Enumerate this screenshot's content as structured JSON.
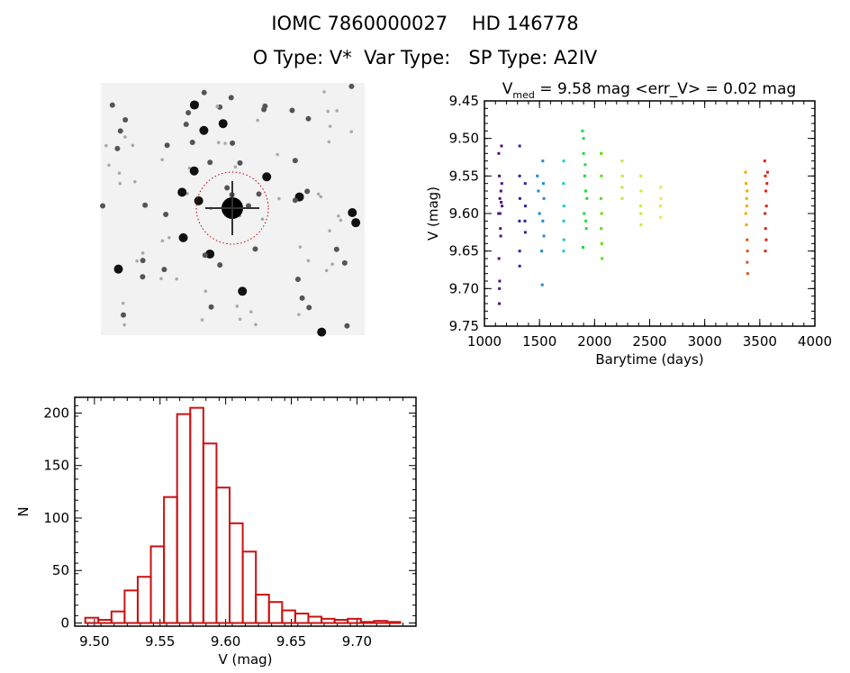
{
  "header": {
    "title_line1": "IOMC 7860000027    HD 146778",
    "title_line2": "O Type: V*  Var Type:   SP Type: A2IV"
  },
  "image_panel": {
    "icon": "star-field-image",
    "circle_color": "#cc0000"
  },
  "chart_data": [
    {
      "type": "scatter",
      "title": "V_med = 9.58 mag <err_V> = 0.02 mag",
      "title_main": "V",
      "title_sub": "med",
      "title_rest": " = 9.58 mag <err_V> = 0.02 mag",
      "xlabel": "Barytime (days)",
      "ylabel": "V (mag)",
      "xlim": [
        1000,
        4000
      ],
      "ylim": [
        9.45,
        9.75
      ],
      "y_reversed": true,
      "xticks": [
        "1000",
        "1500",
        "2000",
        "2500",
        "3000",
        "3500",
        "4000"
      ],
      "yticks": [
        "9.45",
        "9.50",
        "9.55",
        "9.60",
        "9.65",
        "9.70",
        "9.75"
      ],
      "groups": [
        {
          "color": "#55107a",
          "points": [
            [
              1130,
              9.52
            ],
            [
              1135,
              9.55
            ],
            [
              1140,
              9.58
            ],
            [
              1128,
              9.6
            ],
            [
              1145,
              9.62
            ],
            [
              1150,
              9.57
            ],
            [
              1155,
              9.51
            ],
            [
              1160,
              9.59
            ],
            [
              1132,
              9.66
            ],
            [
              1138,
              9.69
            ],
            [
              1135,
              9.72
            ],
            [
              1148,
              9.63
            ],
            [
              1158,
              9.56
            ],
            [
              1142,
              9.6
            ],
            [
              1152,
              9.585
            ],
            [
              1136,
              9.7
            ]
          ]
        },
        {
          "color": "#2828a0",
          "points": [
            [
              1320,
              9.51
            ],
            [
              1320,
              9.55
            ],
            [
              1322,
              9.58
            ],
            [
              1318,
              9.61
            ],
            [
              1320,
              9.65
            ],
            [
              1320,
              9.67
            ],
            [
              1370,
              9.56
            ],
            [
              1372,
              9.59
            ],
            [
              1368,
              9.61
            ],
            [
              1371,
              9.625
            ]
          ]
        },
        {
          "color": "#1e8ad0",
          "points": [
            [
              1480,
              9.55
            ],
            [
              1490,
              9.57
            ],
            [
              1500,
              9.6
            ],
            [
              1520,
              9.65
            ],
            [
              1525,
              9.695
            ],
            [
              1530,
              9.53
            ],
            [
              1535,
              9.56
            ],
            [
              1540,
              9.58
            ],
            [
              1530,
              9.61
            ],
            [
              1540,
              9.63
            ]
          ]
        },
        {
          "color": "#20c8c8",
          "points": [
            [
              1720,
              9.53
            ],
            [
              1718,
              9.56
            ],
            [
              1722,
              9.59
            ],
            [
              1720,
              9.61
            ],
            [
              1721,
              9.635
            ],
            [
              1719,
              9.65
            ]
          ]
        },
        {
          "color": "#20d840",
          "points": [
            [
              1890,
              9.49
            ],
            [
              1900,
              9.52
            ],
            [
              1910,
              9.55
            ],
            [
              1920,
              9.57
            ],
            [
              1905,
              9.6
            ],
            [
              1925,
              9.62
            ],
            [
              1895,
              9.645
            ],
            [
              1915,
              9.535
            ],
            [
              1930,
              9.58
            ],
            [
              1900,
              9.5
            ],
            [
              1920,
              9.61
            ]
          ]
        },
        {
          "color": "#58e000",
          "points": [
            [
              2060,
              9.52
            ],
            [
              2062,
              9.55
            ],
            [
              2058,
              9.58
            ],
            [
              2064,
              9.6
            ],
            [
              2060,
              9.62
            ],
            [
              2066,
              9.64
            ],
            [
              2068,
              9.66
            ]
          ]
        },
        {
          "color": "#c0e840",
          "points": [
            [
              2250,
              9.53
            ],
            [
              2252,
              9.55
            ],
            [
              2250,
              9.565
            ],
            [
              2251,
              9.58
            ]
          ]
        },
        {
          "color": "#d8e820",
          "points": [
            [
              2420,
              9.55
            ],
            [
              2422,
              9.57
            ],
            [
              2418,
              9.59
            ],
            [
              2420,
              9.6
            ],
            [
              2421,
              9.615
            ]
          ]
        },
        {
          "color": "#e8e840",
          "points": [
            [
              2600,
              9.565
            ],
            [
              2602,
              9.58
            ],
            [
              2598,
              9.59
            ],
            [
              2600,
              9.605
            ]
          ]
        },
        {
          "color": "#f0a800",
          "points": [
            [
              3370,
              9.545
            ],
            [
              3375,
              9.56
            ],
            [
              3380,
              9.58
            ],
            [
              3372,
              9.6
            ],
            [
              3378,
              9.615
            ],
            [
              3385,
              9.57
            ],
            [
              3382,
              9.59
            ]
          ]
        },
        {
          "color": "#d05a20",
          "points": [
            [
              3385,
              9.635
            ],
            [
              3388,
              9.65
            ],
            [
              3386,
              9.665
            ],
            [
              3390,
              9.68
            ]
          ]
        },
        {
          "color": "#e02010",
          "points": [
            [
              3545,
              9.53
            ],
            [
              3550,
              9.55
            ],
            [
              3555,
              9.57
            ],
            [
              3560,
              9.59
            ],
            [
              3548,
              9.6
            ],
            [
              3565,
              9.56
            ],
            [
              3552,
              9.62
            ],
            [
              3558,
              9.635
            ],
            [
              3550,
              9.65
            ],
            [
              3570,
              9.545
            ]
          ]
        }
      ]
    },
    {
      "type": "bar",
      "subtype": "histogram",
      "xlabel": "V (mag)",
      "ylabel": "N",
      "xlim": [
        9.485,
        9.745
      ],
      "ylim": [
        -3,
        215
      ],
      "xticks": [
        "9.50",
        "9.55",
        "9.60",
        "9.65",
        "9.70"
      ],
      "yticks": [
        "0",
        "50",
        "100",
        "150",
        "200"
      ],
      "bin_start": 9.493,
      "bin_width": 0.01,
      "values": [
        5,
        3,
        11,
        31,
        44,
        73,
        120,
        199,
        205,
        171,
        129,
        95,
        68,
        27,
        20,
        12,
        9,
        6,
        4,
        3,
        4,
        1,
        2,
        1
      ],
      "color": "#cc1111"
    }
  ]
}
